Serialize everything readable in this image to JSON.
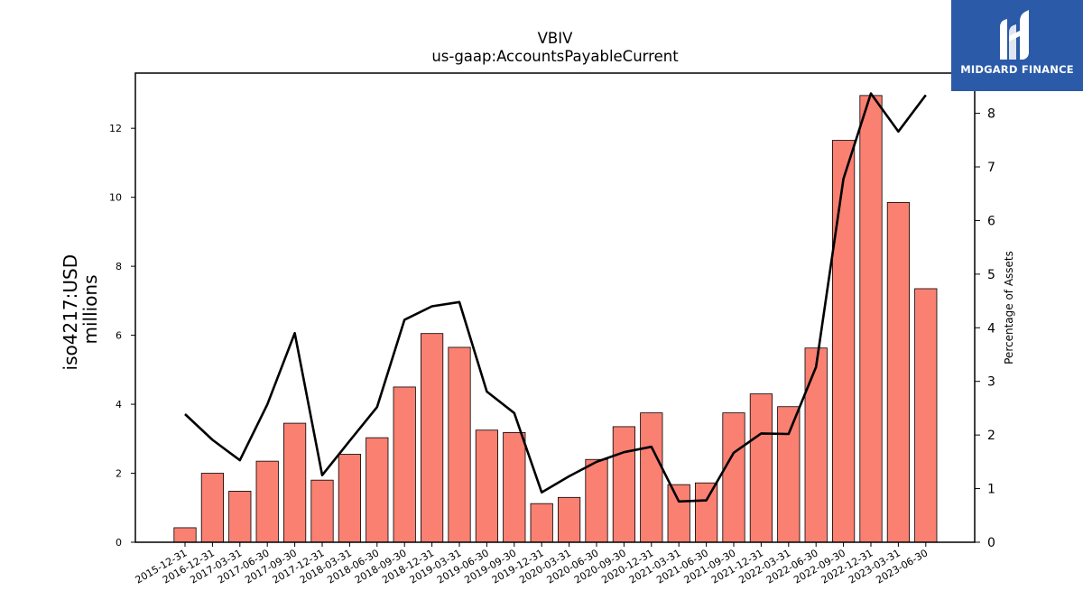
{
  "chart_data": {
    "type": "bar+line",
    "title": "VBIV",
    "subtitle": "us-gaap:AccountsPayableCurrent",
    "ylabel_left": "iso4217:USD\nmillions",
    "ylabel_right": "Percentage of Assets",
    "categories": [
      "2015-12-31",
      "2016-12-31",
      "2017-03-31",
      "2017-06-30",
      "2017-09-30",
      "2017-12-31",
      "2018-03-31",
      "2018-06-30",
      "2018-09-30",
      "2018-12-31",
      "2019-03-31",
      "2019-06-30",
      "2019-09-30",
      "2019-12-31",
      "2020-03-31",
      "2020-06-30",
      "2020-09-30",
      "2020-12-31",
      "2021-03-31",
      "2021-06-30",
      "2021-09-30",
      "2021-12-31",
      "2022-03-31",
      "2022-06-30",
      "2022-09-30",
      "2022-12-31",
      "2023-03-31",
      "2023-06-30"
    ],
    "series": [
      {
        "axis": "left",
        "type": "bar",
        "color": "#fa8072",
        "values": [
          0.42,
          2.0,
          1.48,
          2.35,
          3.45,
          1.8,
          2.55,
          3.03,
          4.5,
          6.05,
          5.65,
          3.25,
          3.18,
          1.12,
          1.3,
          2.4,
          3.35,
          3.75,
          1.67,
          1.72,
          3.75,
          4.3,
          3.93,
          5.63,
          11.65,
          12.95,
          9.85,
          7.35
        ]
      },
      {
        "axis": "right",
        "type": "line",
        "color": "#000000",
        "values": [
          2.39,
          1.91,
          1.53,
          2.57,
          3.9,
          1.25,
          1.89,
          2.52,
          4.15,
          4.4,
          4.48,
          2.81,
          2.41,
          0.93,
          1.23,
          1.5,
          1.68,
          1.78,
          0.76,
          0.78,
          1.67,
          2.03,
          2.02,
          3.27,
          6.78,
          8.37,
          7.66,
          8.34
        ]
      }
    ],
    "ylim_left": [
      0,
      13.6
    ],
    "ylim_right": [
      0,
      8.75
    ],
    "yticks_left": [
      0,
      2,
      4,
      6,
      8,
      10,
      12
    ],
    "yticks_right": [
      0,
      1,
      2,
      3,
      4,
      5,
      6,
      7,
      8
    ],
    "grid": false,
    "legend": "none"
  },
  "logo": {
    "text": "MIDGARD FINANCE",
    "bg_color": "#2a5aa8"
  }
}
